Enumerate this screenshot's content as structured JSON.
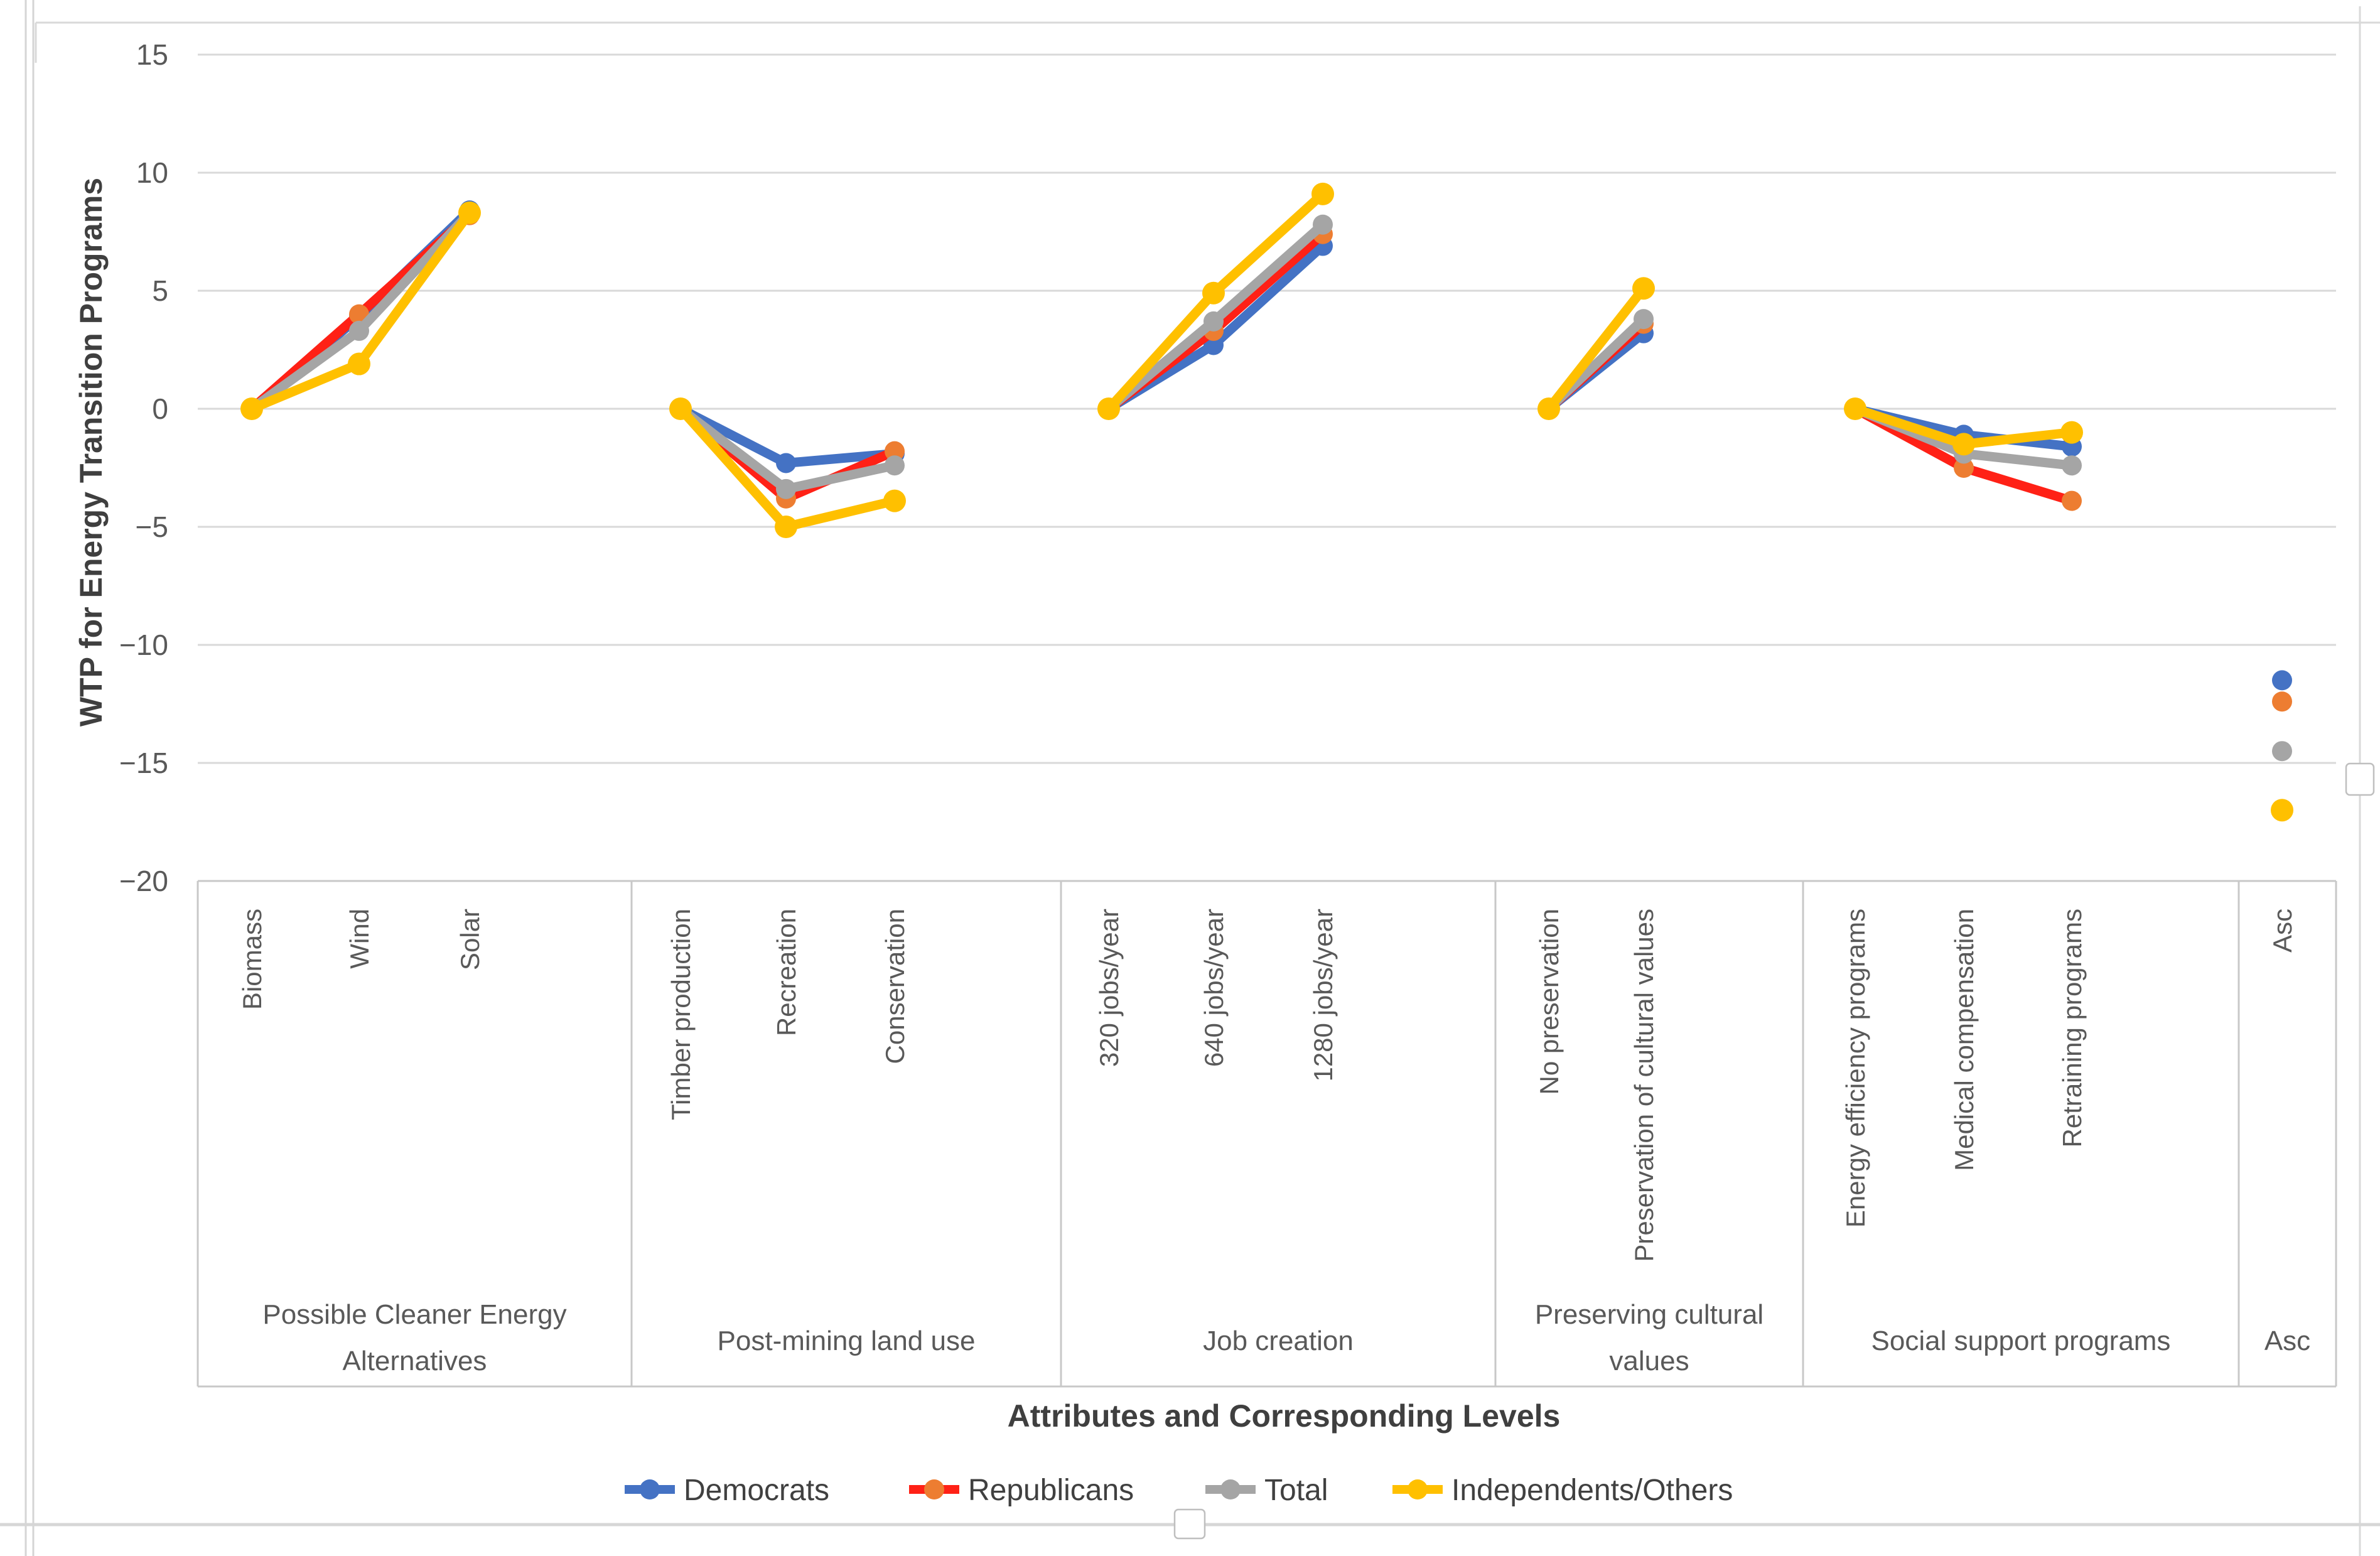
{
  "chart_data": {
    "type": "line",
    "title": "",
    "xlabel": "Attributes and Corresponding Levels",
    "ylabel": "WTP for Energy Transition Programs",
    "ylim": [
      -20,
      15
    ],
    "yticks": [
      15,
      10,
      5,
      0,
      -5,
      -10,
      -15,
      -20
    ],
    "grid": true,
    "legend_position": "bottom",
    "groups": [
      {
        "label_lines": [
          "Possible Cleaner Energy",
          "Alternatives"
        ],
        "levels": [
          "Biomass",
          "Wind",
          "Solar"
        ]
      },
      {
        "label_lines": [
          "Post-mining land use"
        ],
        "levels": [
          "Timber production",
          "Recreation",
          "Conservation"
        ]
      },
      {
        "label_lines": [
          "Job creation"
        ],
        "levels": [
          "320 jobs/year",
          "640 jobs/year",
          "1280 jobs/year"
        ]
      },
      {
        "label_lines": [
          "Preserving cultural",
          "values"
        ],
        "levels": [
          "No preservation",
          "Preservation of cultural values"
        ]
      },
      {
        "label_lines": [
          "Social support programs"
        ],
        "levels": [
          "Energy efficiency programs",
          "Medical compensation",
          "Retraining programs"
        ]
      },
      {
        "label_lines": [
          "Asc"
        ],
        "levels": [
          "Asc"
        ]
      }
    ],
    "series": [
      {
        "name": "Democrats",
        "line_color": "#4472C4",
        "marker_color": "#4472C4",
        "values": [
          [
            0,
            3.9,
            8.4
          ],
          [
            0,
            -2.3,
            -1.9
          ],
          [
            0,
            2.7,
            6.9
          ],
          [
            0,
            3.2
          ],
          [
            0,
            -1.1,
            -1.6
          ],
          [
            -11.5
          ]
        ]
      },
      {
        "name": "Republicans",
        "line_color": "#FF2116",
        "marker_color": "#ED7D31",
        "values": [
          [
            0,
            4.0,
            8.2
          ],
          [
            0,
            -3.8,
            -1.8
          ],
          [
            0,
            3.3,
            7.4
          ],
          [
            0,
            3.6
          ],
          [
            0,
            -2.5,
            -3.9
          ],
          [
            -12.4
          ]
        ]
      },
      {
        "name": "Total",
        "line_color": "#A5A5A5",
        "marker_color": "#A5A5A5",
        "values": [
          [
            0,
            3.3,
            8.3
          ],
          [
            0,
            -3.4,
            -2.4
          ],
          [
            0,
            3.7,
            7.8
          ],
          [
            0,
            3.8
          ],
          [
            0,
            -1.9,
            -2.4
          ],
          [
            -14.5
          ]
        ]
      },
      {
        "name": "Independents/Others",
        "line_color": "#FFC000",
        "marker_color": "#FFC000",
        "values": [
          [
            0,
            1.9,
            8.3
          ],
          [
            0,
            -5.0,
            -3.9
          ],
          [
            0,
            4.9,
            9.1
          ],
          [
            0,
            5.1
          ],
          [
            0,
            -1.5,
            -1.0
          ],
          [
            -17.0
          ]
        ]
      }
    ],
    "colors": {
      "gridline": "#D9D9D9",
      "table_line": "#C8C8C8",
      "tick_text": "#595959",
      "label_text": "#595959",
      "title_text": "#3F3F3F",
      "legend_text": "#404040",
      "frame": "#D9D9D9",
      "handle_border": "#BFBFBF"
    }
  }
}
